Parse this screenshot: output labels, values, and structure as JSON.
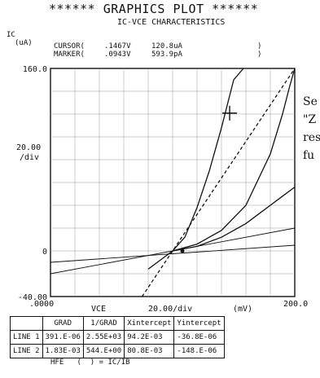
{
  "header": {
    "title": "****** GRAPHICS PLOT ******",
    "subtitle": "IC-VCE CHARACTERISTICS"
  },
  "yaxis": {
    "label": "IC",
    "unit": "(uA)",
    "div_label": "20.00",
    "div_unit": "/div"
  },
  "readout": {
    "cursor_label": "CURSOR(",
    "cursor_v": ".1467V",
    "cursor_i": "120.8uA",
    "cursor_end": ")",
    "marker_label": "MARKER(",
    "marker_v": ".0943V",
    "marker_i": "593.9pA",
    "marker_end": ")"
  },
  "xaxis": {
    "label": "VCE",
    "scale": "20.00/div",
    "unit": "(mV)"
  },
  "side_text": [
    "Se",
    "\"Z",
    "res",
    "fu"
  ],
  "table": {
    "headers": [
      "",
      "GRAD",
      "1/GRAD",
      "Xintercept",
      "Yintercept"
    ],
    "rows": [
      [
        "LINE 1",
        "391.E-06",
        "2.55E+03",
        "94.2E-03",
        "-36.8E-06"
      ],
      [
        "LINE 2",
        "1.83E-03",
        "544.E+00",
        "80.8E-03",
        "-148.E-06"
      ]
    ]
  },
  "footer": "HFE   (  ) = IC/IB",
  "chart_data": {
    "type": "line",
    "xlim": [
      0,
      200
    ],
    "ylim": [
      -40,
      160
    ],
    "xticks": [
      ".0000",
      "200.0"
    ],
    "yticks": [
      "160.0",
      "0",
      "-40.00"
    ],
    "grid": true,
    "series": [
      {
        "style": "solid",
        "x": [
          100,
          110,
          120,
          130,
          140,
          150,
          158
        ],
        "y": [
          0,
          12,
          38,
          70,
          108,
          150,
          160
        ]
      },
      {
        "style": "solid",
        "x": [
          100,
          120,
          140,
          160,
          180,
          190,
          196,
          200
        ],
        "y": [
          0,
          6,
          18,
          40,
          85,
          120,
          145,
          160
        ]
      },
      {
        "style": "solid",
        "x": [
          80,
          100,
          120,
          140,
          150,
          160,
          170,
          180,
          190,
          200
        ],
        "y": [
          -16,
          0,
          4,
          12,
          18,
          24,
          32,
          40,
          48,
          56
        ]
      },
      {
        "style": "dashed",
        "x": [
          75,
          200
        ],
        "y": [
          -40,
          160
        ]
      },
      {
        "style": "thin",
        "x": [
          0,
          200
        ],
        "y": [
          -20,
          20
        ]
      },
      {
        "style": "thin",
        "x": [
          0,
          200
        ],
        "y": [
          -10,
          5
        ]
      }
    ],
    "cursor": {
      "x": 146.7,
      "y": 120.8
    },
    "marker": {
      "x": 108,
      "y": 0
    }
  }
}
